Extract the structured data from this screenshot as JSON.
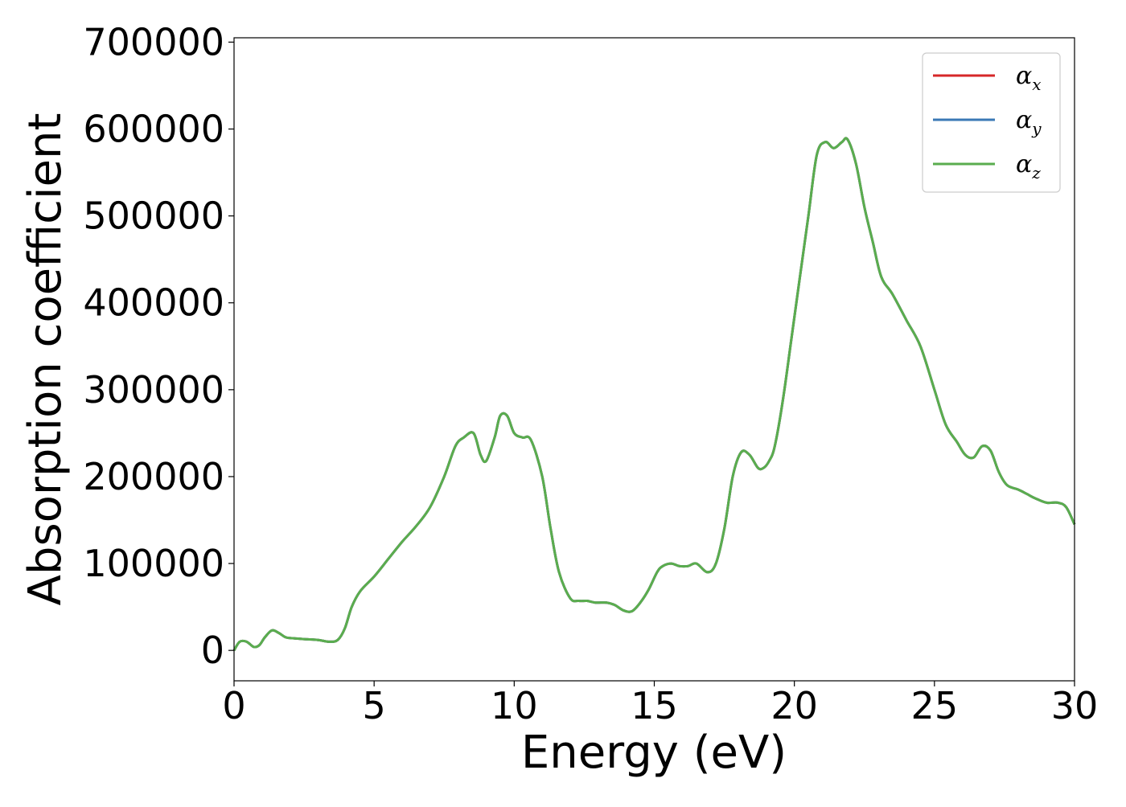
{
  "chart_data": {
    "type": "line",
    "title": "",
    "xlabel": "Energy (eV)",
    "ylabel": "Absorption coefficient",
    "xlim": [
      0,
      30
    ],
    "ylim": [
      -35000,
      705000
    ],
    "x_ticks": [
      "0",
      "5",
      "10",
      "15",
      "20",
      "25",
      "30"
    ],
    "y_ticks": [
      "0",
      "100000",
      "200000",
      "300000",
      "400000",
      "500000",
      "600000",
      "700000"
    ],
    "grid": false,
    "legend_position": "top-right",
    "series": [
      {
        "name": "α",
        "subscript": "x",
        "color": "#d62728",
        "x": [
          0,
          0.2,
          0.45,
          0.7,
          0.9,
          1.1,
          1.35,
          1.6,
          1.85,
          2.1,
          2.5,
          3.0,
          3.4,
          3.7,
          3.95,
          4.2,
          4.5,
          5.0,
          5.5,
          6.0,
          6.5,
          7.0,
          7.5,
          7.9,
          8.2,
          8.55,
          8.8,
          9.0,
          9.3,
          9.5,
          9.75,
          10.0,
          10.3,
          10.6,
          11.0,
          11.3,
          11.6,
          12.0,
          12.3,
          12.6,
          12.9,
          13.3,
          13.6,
          13.9,
          14.2,
          14.5,
          14.8,
          15.1,
          15.3,
          15.6,
          15.9,
          16.2,
          16.5,
          16.9,
          17.2,
          17.5,
          17.8,
          18.1,
          18.4,
          18.7,
          18.9,
          19.1,
          19.3,
          19.6,
          19.9,
          20.2,
          20.5,
          20.8,
          21.1,
          21.4,
          21.7,
          21.9,
          22.2,
          22.5,
          22.8,
          23.1,
          23.5,
          24.0,
          24.5,
          25.0,
          25.4,
          25.8,
          26.1,
          26.4,
          26.7,
          27.0,
          27.3,
          27.6,
          28.0,
          28.3,
          28.6,
          29.0,
          29.4,
          29.7,
          30.0
        ],
        "y": [
          0,
          10000,
          10000,
          4000,
          6000,
          15000,
          23000,
          20000,
          15000,
          14000,
          13000,
          12000,
          10000,
          12000,
          25000,
          50000,
          68000,
          85000,
          105000,
          125000,
          143000,
          165000,
          200000,
          235000,
          245000,
          250000,
          225000,
          218000,
          245000,
          270000,
          270000,
          250000,
          245000,
          242000,
          200000,
          140000,
          90000,
          60000,
          57000,
          57000,
          55000,
          55000,
          52000,
          46000,
          45000,
          55000,
          70000,
          90000,
          97000,
          100000,
          97000,
          97000,
          100000,
          90000,
          100000,
          140000,
          200000,
          228000,
          225000,
          210000,
          210000,
          218000,
          235000,
          290000,
          360000,
          430000,
          500000,
          570000,
          585000,
          578000,
          585000,
          588000,
          560000,
          510000,
          470000,
          430000,
          410000,
          380000,
          350000,
          300000,
          260000,
          240000,
          225000,
          222000,
          235000,
          230000,
          205000,
          190000,
          185000,
          180000,
          175000,
          170000,
          170000,
          165000,
          145000
        ]
      },
      {
        "name": "α",
        "subscript": "y",
        "color": "#3a78b5",
        "x": [
          0,
          0.2,
          0.45,
          0.7,
          0.9,
          1.1,
          1.35,
          1.6,
          1.85,
          2.1,
          2.5,
          3.0,
          3.4,
          3.7,
          3.95,
          4.2,
          4.5,
          5.0,
          5.5,
          6.0,
          6.5,
          7.0,
          7.5,
          7.9,
          8.2,
          8.55,
          8.8,
          9.0,
          9.3,
          9.5,
          9.75,
          10.0,
          10.3,
          10.6,
          11.0,
          11.3,
          11.6,
          12.0,
          12.3,
          12.6,
          12.9,
          13.3,
          13.6,
          13.9,
          14.2,
          14.5,
          14.8,
          15.1,
          15.3,
          15.6,
          15.9,
          16.2,
          16.5,
          16.9,
          17.2,
          17.5,
          17.8,
          18.1,
          18.4,
          18.7,
          18.9,
          19.1,
          19.3,
          19.6,
          19.9,
          20.2,
          20.5,
          20.8,
          21.1,
          21.4,
          21.7,
          21.9,
          22.2,
          22.5,
          22.8,
          23.1,
          23.5,
          24.0,
          24.5,
          25.0,
          25.4,
          25.8,
          26.1,
          26.4,
          26.7,
          27.0,
          27.3,
          27.6,
          28.0,
          28.3,
          28.6,
          29.0,
          29.4,
          29.7,
          30.0
        ],
        "y": [
          0,
          10000,
          10000,
          4000,
          6000,
          15000,
          23000,
          20000,
          15000,
          14000,
          13000,
          12000,
          10000,
          12000,
          25000,
          50000,
          68000,
          85000,
          105000,
          125000,
          143000,
          165000,
          200000,
          235000,
          245000,
          250000,
          225000,
          218000,
          245000,
          270000,
          270000,
          250000,
          245000,
          242000,
          200000,
          140000,
          90000,
          60000,
          57000,
          57000,
          55000,
          55000,
          52000,
          46000,
          45000,
          55000,
          70000,
          90000,
          97000,
          100000,
          97000,
          97000,
          100000,
          90000,
          100000,
          140000,
          200000,
          228000,
          225000,
          210000,
          210000,
          218000,
          235000,
          290000,
          360000,
          430000,
          500000,
          570000,
          585000,
          578000,
          585000,
          588000,
          560000,
          510000,
          470000,
          430000,
          410000,
          380000,
          350000,
          300000,
          260000,
          240000,
          225000,
          222000,
          235000,
          230000,
          205000,
          190000,
          185000,
          180000,
          175000,
          170000,
          170000,
          165000,
          145000
        ]
      },
      {
        "name": "α",
        "subscript": "z",
        "color": "#5aad4e",
        "x": [
          0,
          0.2,
          0.45,
          0.7,
          0.9,
          1.1,
          1.35,
          1.6,
          1.85,
          2.1,
          2.5,
          3.0,
          3.4,
          3.7,
          3.95,
          4.2,
          4.5,
          5.0,
          5.5,
          6.0,
          6.5,
          7.0,
          7.5,
          7.9,
          8.2,
          8.55,
          8.8,
          9.0,
          9.3,
          9.5,
          9.75,
          10.0,
          10.3,
          10.6,
          11.0,
          11.3,
          11.6,
          12.0,
          12.3,
          12.6,
          12.9,
          13.3,
          13.6,
          13.9,
          14.2,
          14.5,
          14.8,
          15.1,
          15.3,
          15.6,
          15.9,
          16.2,
          16.5,
          16.9,
          17.2,
          17.5,
          17.8,
          18.1,
          18.4,
          18.7,
          18.9,
          19.1,
          19.3,
          19.6,
          19.9,
          20.2,
          20.5,
          20.8,
          21.1,
          21.4,
          21.7,
          21.9,
          22.2,
          22.5,
          22.8,
          23.1,
          23.5,
          24.0,
          24.5,
          25.0,
          25.4,
          25.8,
          26.1,
          26.4,
          26.7,
          27.0,
          27.3,
          27.6,
          28.0,
          28.3,
          28.6,
          29.0,
          29.4,
          29.7,
          30.0
        ],
        "y": [
          0,
          10000,
          10000,
          4000,
          6000,
          15000,
          23000,
          20000,
          15000,
          14000,
          13000,
          12000,
          10000,
          12000,
          25000,
          50000,
          68000,
          85000,
          105000,
          125000,
          143000,
          165000,
          200000,
          235000,
          245000,
          250000,
          225000,
          218000,
          245000,
          270000,
          270000,
          250000,
          245000,
          242000,
          200000,
          140000,
          90000,
          60000,
          57000,
          57000,
          55000,
          55000,
          52000,
          46000,
          45000,
          55000,
          70000,
          90000,
          97000,
          100000,
          97000,
          97000,
          100000,
          90000,
          100000,
          140000,
          200000,
          228000,
          225000,
          210000,
          210000,
          218000,
          235000,
          290000,
          360000,
          430000,
          500000,
          570000,
          585000,
          578000,
          585000,
          588000,
          560000,
          510000,
          470000,
          430000,
          410000,
          380000,
          350000,
          300000,
          260000,
          240000,
          225000,
          222000,
          235000,
          230000,
          205000,
          190000,
          185000,
          180000,
          175000,
          170000,
          170000,
          165000,
          145000
        ]
      }
    ]
  }
}
